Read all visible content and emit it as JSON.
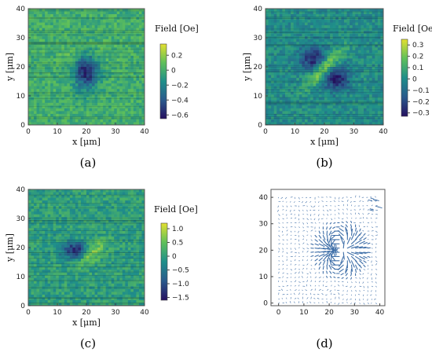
{
  "chart_data": [
    {
      "panel": "(a)",
      "type": "heatmap",
      "xlabel": "x [μm]",
      "ylabel": "y [μm]",
      "xlim": [
        0,
        40
      ],
      "ylim": [
        0,
        40
      ],
      "xticks": [
        "0",
        "10",
        "20",
        "30",
        "40"
      ],
      "yticks": [
        "0",
        "10",
        "20",
        "30",
        "40"
      ],
      "colorbar": {
        "label": "Field [Oe]",
        "range": [
          -0.65,
          0.35
        ],
        "ticks": [
          "0.2",
          "0",
          "−0.2",
          "−0.4",
          "−0.6"
        ],
        "tick_values": [
          0.2,
          0,
          -0.2,
          -0.4,
          -0.6
        ]
      },
      "features": [
        {
          "kind": "dipole",
          "x": 20,
          "y": 19,
          "value": -0.6,
          "sx": 3,
          "sy": 4.5
        },
        {
          "kind": "lobe",
          "x": 20,
          "y": 24,
          "value": 0.15,
          "sx": 5,
          "sy": 3
        }
      ]
    },
    {
      "panel": "(b)",
      "type": "heatmap",
      "xlabel": "x [μm]",
      "ylabel": "y [μm]",
      "xlim": [
        0,
        40
      ],
      "ylim": [
        0,
        40
      ],
      "xticks": [
        "0",
        "10",
        "20",
        "30",
        "40"
      ],
      "yticks": [
        "0",
        "10",
        "20",
        "30",
        "40"
      ],
      "colorbar": {
        "label": "Field [Oe]",
        "range": [
          -0.33,
          0.35
        ],
        "ticks": [
          "0.3",
          "0.2",
          "0.1",
          "0",
          "−0.1",
          "−0.2",
          "−0.3"
        ],
        "tick_values": [
          0.3,
          0.2,
          0.1,
          0,
          -0.1,
          -0.2,
          -0.3
        ]
      },
      "features": [
        {
          "kind": "lobe",
          "x": 16,
          "y": 23,
          "value": -0.28,
          "sx": 3,
          "sy": 3
        },
        {
          "kind": "lobe",
          "x": 24,
          "y": 16,
          "value": -0.28,
          "sx": 3,
          "sy": 3
        },
        {
          "kind": "band",
          "x": 20,
          "y": 19.5,
          "value": 0.28,
          "sx": 6,
          "sy": 1.6
        }
      ]
    },
    {
      "panel": "(c)",
      "type": "heatmap",
      "xlabel": "x [μm]",
      "ylabel": "y [μm]",
      "xlim": [
        0,
        40
      ],
      "ylim": [
        0,
        40
      ],
      "xticks": [
        "0",
        "10",
        "20",
        "30",
        "40"
      ],
      "yticks": [
        "0",
        "10",
        "20",
        "30",
        "40"
      ],
      "colorbar": {
        "label": "Field [Oe]",
        "range": [
          -1.6,
          1.2
        ],
        "ticks": [
          "1.0",
          "0.5",
          "0",
          "−0.5",
          "−1.0",
          "−1.5"
        ],
        "tick_values": [
          1.0,
          0.5,
          0,
          -0.5,
          -1.0,
          -1.5
        ]
      },
      "features": [
        {
          "kind": "lobe",
          "x": 16,
          "y": 19,
          "value": -1.4,
          "sx": 3,
          "sy": 2
        },
        {
          "kind": "band",
          "x": 22,
          "y": 18,
          "value": 0.8,
          "sx": 4,
          "sy": 1.8
        }
      ]
    },
    {
      "panel": "(d)",
      "type": "vector-field",
      "xlim": [
        -3,
        42
      ],
      "ylim": [
        -1,
        43
      ],
      "xticks": [
        "0",
        "10",
        "20",
        "30",
        "40"
      ],
      "yticks": [
        "0",
        "10",
        "20",
        "30",
        "40"
      ],
      "dipole_center": [
        24,
        20
      ]
    }
  ]
}
